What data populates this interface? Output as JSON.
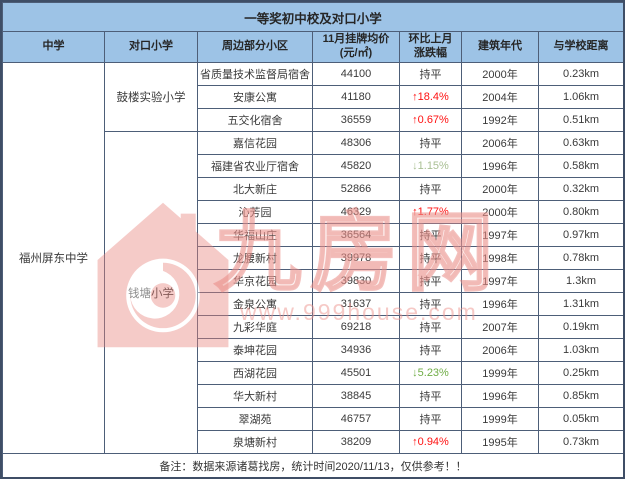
{
  "title": "一等奖初中校及对口小学",
  "columns": [
    "中学",
    "对口小学",
    "周边部分小区",
    "11月挂牌均价\n(元/㎡)",
    "环比上月\n涨跌幅",
    "建筑年代",
    "与学校距离"
  ],
  "middle_school": "福州屏东中学",
  "groups": [
    {
      "primary_school": "鼓楼实验小学",
      "rows": [
        {
          "community": "省质量技术监督局宿舍",
          "price": "44100",
          "change": "持平",
          "trend": "flat",
          "year": "2000年",
          "distance": "0.23km"
        },
        {
          "community": "安康公寓",
          "price": "41180",
          "change": "↑18.4%",
          "trend": "up",
          "year": "2004年",
          "distance": "1.06km"
        },
        {
          "community": "五交化宿舍",
          "price": "36559",
          "change": "↑0.67%",
          "trend": "up",
          "year": "1992年",
          "distance": "0.51km"
        }
      ]
    },
    {
      "primary_school": "钱塘小学",
      "rows": [
        {
          "community": "嘉信花园",
          "price": "48306",
          "change": "持平",
          "trend": "flat",
          "year": "2006年",
          "distance": "0.63km"
        },
        {
          "community": "福建省农业厅宿舍",
          "price": "45820",
          "change": "↓1.15%",
          "trend": "down-muted",
          "year": "1996年",
          "distance": "0.58km"
        },
        {
          "community": "北大新庄",
          "price": "52866",
          "change": "持平",
          "trend": "flat",
          "year": "2000年",
          "distance": "0.32km"
        },
        {
          "community": "沁芳园",
          "price": "46329",
          "change": "↑1.77%",
          "trend": "up",
          "year": "2000年",
          "distance": "0.80km"
        },
        {
          "community": "华福山庄",
          "price": "36564",
          "change": "持平",
          "trend": "flat",
          "year": "1997年",
          "distance": "0.97km"
        },
        {
          "community": "龙腰新村",
          "price": "39978",
          "change": "持平",
          "trend": "flat",
          "year": "1998年",
          "distance": "0.78km"
        },
        {
          "community": "华京花园",
          "price": "39830",
          "change": "持平",
          "trend": "flat",
          "year": "1997年",
          "distance": "1.3km"
        },
        {
          "community": "金泉公寓",
          "price": "31637",
          "change": "持平",
          "trend": "flat",
          "year": "1996年",
          "distance": "1.31km"
        },
        {
          "community": "九彩华庭",
          "price": "69218",
          "change": "持平",
          "trend": "flat",
          "year": "2007年",
          "distance": "0.19km"
        },
        {
          "community": "泰坤花园",
          "price": "34936",
          "change": "持平",
          "trend": "flat",
          "year": "2006年",
          "distance": "1.03km"
        },
        {
          "community": "西湖花园",
          "price": "45501",
          "change": "↓5.23%",
          "trend": "down",
          "year": "1999年",
          "distance": "0.25km"
        },
        {
          "community": "华大新村",
          "price": "38845",
          "change": "持平",
          "trend": "flat",
          "year": "1996年",
          "distance": "0.85km"
        },
        {
          "community": "翠湖苑",
          "price": "46757",
          "change": "持平",
          "trend": "flat",
          "year": "1999年",
          "distance": "0.05km"
        },
        {
          "community": "泉塘新村",
          "price": "38209",
          "change": "↑0.94%",
          "trend": "up",
          "year": "1995年",
          "distance": "0.73km"
        }
      ]
    }
  ],
  "footer": "备注：数据来源诸葛找房，统计时间2020/11/13，仅供参考！！",
  "watermark": {
    "brand": "九房网",
    "url": "www.999house.com",
    "color": "#ef9a94"
  },
  "colors": {
    "header_bg": "#9dc3e6",
    "border": "#4d5e78",
    "up_red": "#ff1111",
    "down_green": "#70ad47",
    "watermark_pink": "#ef9a94"
  },
  "chart_data": {
    "type": "table",
    "title": "一等奖初中校及对口小学",
    "columns": [
      "中学",
      "对口小学",
      "周边部分小区",
      "11月挂牌均价(元/㎡)",
      "环比上月涨跌幅",
      "建筑年代",
      "与学校距离"
    ],
    "rows": [
      [
        "福州屏东中学",
        "鼓楼实验小学",
        "省质量技术监督局宿舍",
        44100,
        "持平",
        "2000年",
        "0.23km"
      ],
      [
        "福州屏东中学",
        "鼓楼实验小学",
        "安康公寓",
        41180,
        "↑18.4%",
        "2004年",
        "1.06km"
      ],
      [
        "福州屏东中学",
        "鼓楼实验小学",
        "五交化宿舍",
        36559,
        "↑0.67%",
        "1992年",
        "0.51km"
      ],
      [
        "福州屏东中学",
        "钱塘小学",
        "嘉信花园",
        48306,
        "持平",
        "2006年",
        "0.63km"
      ],
      [
        "福州屏东中学",
        "钱塘小学",
        "福建省农业厅宿舍",
        45820,
        "↓1.15%",
        "1996年",
        "0.58km"
      ],
      [
        "福州屏东中学",
        "钱塘小学",
        "北大新庄",
        52866,
        "持平",
        "2000年",
        "0.32km"
      ],
      [
        "福州屏东中学",
        "钱塘小学",
        "沁芳园",
        46329,
        "↑1.77%",
        "2000年",
        "0.80km"
      ],
      [
        "福州屏东中学",
        "钱塘小学",
        "华福山庄",
        36564,
        "持平",
        "1997年",
        "0.97km"
      ],
      [
        "福州屏东中学",
        "钱塘小学",
        "龙腰新村",
        39978,
        "持平",
        "1998年",
        "0.78km"
      ],
      [
        "福州屏东中学",
        "钱塘小学",
        "华京花园",
        39830,
        "持平",
        "1997年",
        "1.3km"
      ],
      [
        "福州屏东中学",
        "钱塘小学",
        "金泉公寓",
        31637,
        "持平",
        "1996年",
        "1.31km"
      ],
      [
        "福州屏东中学",
        "钱塘小学",
        "九彩华庭",
        69218,
        "持平",
        "2007年",
        "0.19km"
      ],
      [
        "福州屏东中学",
        "钱塘小学",
        "泰坤花园",
        34936,
        "持平",
        "2006年",
        "1.03km"
      ],
      [
        "福州屏东中学",
        "钱塘小学",
        "西湖花园",
        45501,
        "↓5.23%",
        "1999年",
        "0.25km"
      ],
      [
        "福州屏东中学",
        "钱塘小学",
        "华大新村",
        38845,
        "持平",
        "1996年",
        "0.85km"
      ],
      [
        "福州屏东中学",
        "钱塘小学",
        "翠湖苑",
        46757,
        "持平",
        "1999年",
        "0.05km"
      ],
      [
        "福州屏东中学",
        "钱塘小学",
        "泉塘新村",
        38209,
        "↑0.94%",
        "1995年",
        "0.73km"
      ]
    ]
  }
}
